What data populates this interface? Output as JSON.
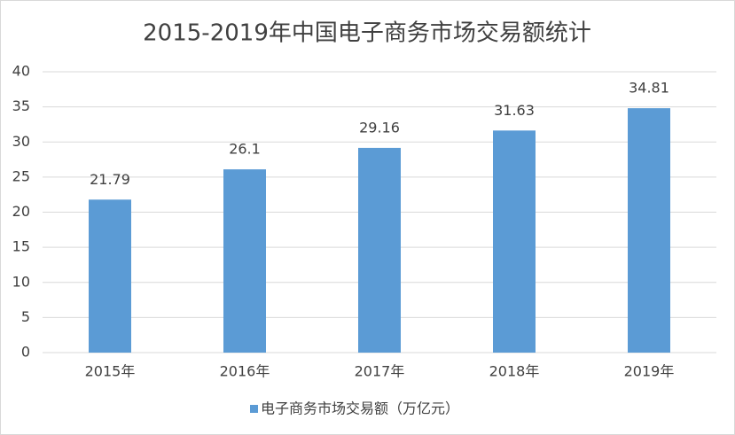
{
  "chart_data": {
    "type": "bar",
    "title": "2015-2019年中国电子商务市场交易额统计",
    "categories": [
      "2015年",
      "2016年",
      "2017年",
      "2018年",
      "2019年"
    ],
    "series": [
      {
        "name": "电子商务市场交易额（万亿元）",
        "color": "#5b9bd5",
        "values": [
          21.79,
          26.1,
          29.16,
          31.63,
          34.81
        ]
      }
    ],
    "ylim": [
      0,
      40
    ],
    "yticks": [
      0,
      5,
      10,
      15,
      20,
      25,
      30,
      35,
      40
    ],
    "grid": true,
    "legend": "bottom",
    "data_labels": true
  }
}
